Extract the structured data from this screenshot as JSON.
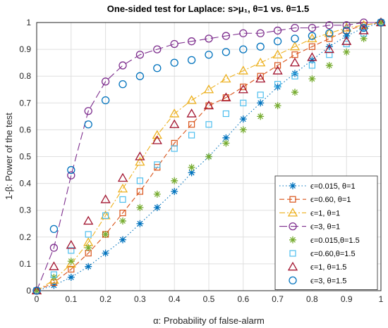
{
  "chart_data": {
    "type": "line",
    "title": "One-sided test for Laplace: s>μ₁, θ=1 vs. θ=1.5",
    "xlabel": "α: Probability of false-alarm",
    "ylabel": "1-β: Power of the test",
    "xlim": [
      0,
      1
    ],
    "ylim": [
      0,
      1
    ],
    "xticks": [
      "0",
      "0.1",
      "0.2",
      "0.3",
      "0.4",
      "0.5",
      "0.6",
      "0.7",
      "0.8",
      "0.9",
      "1"
    ],
    "yticks": [
      "0",
      "0.1",
      "0.2",
      "0.3",
      "0.4",
      "0.5",
      "0.6",
      "0.7",
      "0.8",
      "0.9",
      "1"
    ],
    "grid": true,
    "legend_position": "bottom-right",
    "x": [
      0,
      0.05,
      0.1,
      0.15,
      0.2,
      0.25,
      0.3,
      0.35,
      0.4,
      0.45,
      0.5,
      0.55,
      0.6,
      0.65,
      0.7,
      0.75,
      0.8,
      0.85,
      0.9,
      0.95,
      1
    ],
    "series": [
      {
        "name": "ϵ=0.015, θ=1",
        "color": "#0072BD",
        "marker": "asterisk",
        "line": "dotted",
        "values": [
          0,
          0.02,
          0.05,
          0.09,
          0.14,
          0.19,
          0.25,
          0.31,
          0.37,
          0.44,
          0.5,
          0.57,
          0.64,
          0.7,
          0.76,
          0.81,
          0.86,
          0.91,
          0.95,
          0.98,
          1
        ]
      },
      {
        "name": "ϵ=0.60, θ=1",
        "color": "#D95319",
        "marker": "square",
        "line": "dashed",
        "values": [
          0,
          0.03,
          0.08,
          0.14,
          0.21,
          0.29,
          0.37,
          0.46,
          0.55,
          0.62,
          0.69,
          0.72,
          0.76,
          0.8,
          0.84,
          0.88,
          0.91,
          0.94,
          0.97,
          0.99,
          1
        ]
      },
      {
        "name": "ϵ=1, θ=1",
        "color": "#EDB120",
        "marker": "triangle",
        "line": "dashdot",
        "values": [
          0,
          0.04,
          0.1,
          0.18,
          0.28,
          0.38,
          0.48,
          0.58,
          0.66,
          0.71,
          0.75,
          0.79,
          0.82,
          0.85,
          0.88,
          0.91,
          0.94,
          0.96,
          0.98,
          0.99,
          1
        ]
      },
      {
        "name": "ϵ=3, θ=1",
        "color": "#7E2F8E",
        "marker": "circle",
        "line": "longdash",
        "values": [
          0,
          0.16,
          0.43,
          0.67,
          0.78,
          0.84,
          0.88,
          0.9,
          0.92,
          0.93,
          0.94,
          0.95,
          0.96,
          0.96,
          0.97,
          0.98,
          0.98,
          0.99,
          0.99,
          1,
          1
        ]
      },
      {
        "name": "ϵ=0.015,θ=1.5",
        "color": "#77AC30",
        "marker": "asterisk",
        "line": "none",
        "values": [
          0,
          0.05,
          0.11,
          0.16,
          0.21,
          0.26,
          0.31,
          0.36,
          0.41,
          0.46,
          0.5,
          0.55,
          0.6,
          0.65,
          0.69,
          0.74,
          0.79,
          0.84,
          0.89,
          0.94,
          1
        ]
      },
      {
        "name": "ϵ=0.60,θ=1.5",
        "color": "#4DBEEE",
        "marker": "square",
        "line": "none",
        "values": [
          0,
          0.06,
          0.15,
          0.21,
          0.28,
          0.34,
          0.41,
          0.47,
          0.53,
          0.58,
          0.62,
          0.66,
          0.7,
          0.73,
          0.77,
          0.8,
          0.84,
          0.88,
          0.92,
          0.96,
          1
        ]
      },
      {
        "name": "ϵ=1, θ=1.5",
        "color": "#A2142F",
        "marker": "triangle",
        "line": "none",
        "values": [
          0,
          0.09,
          0.17,
          0.26,
          0.34,
          0.42,
          0.5,
          0.56,
          0.62,
          0.66,
          0.69,
          0.72,
          0.75,
          0.79,
          0.82,
          0.85,
          0.87,
          0.9,
          0.93,
          0.97,
          1
        ]
      },
      {
        "name": "ϵ=3, θ=1.5",
        "color": "#0072BD",
        "marker": "circle",
        "line": "none",
        "values": [
          0,
          0.23,
          0.45,
          0.62,
          0.71,
          0.77,
          0.8,
          0.83,
          0.85,
          0.86,
          0.88,
          0.89,
          0.9,
          0.91,
          0.93,
          0.94,
          0.95,
          0.96,
          0.97,
          0.98,
          1
        ]
      }
    ]
  }
}
